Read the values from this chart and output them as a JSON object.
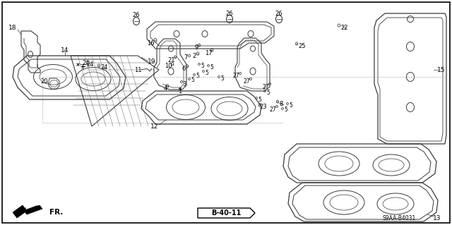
{
  "background_color": "#ffffff",
  "border_color": "#000000",
  "diagram_ref": "B-40-11",
  "diagram_code": "S9AA-B4031",
  "direction_label": "FR.",
  "line_color": "#3a3a3a",
  "line_color_light": "#888888",
  "line_width": 0.7,
  "label_fontsize": 6.5
}
